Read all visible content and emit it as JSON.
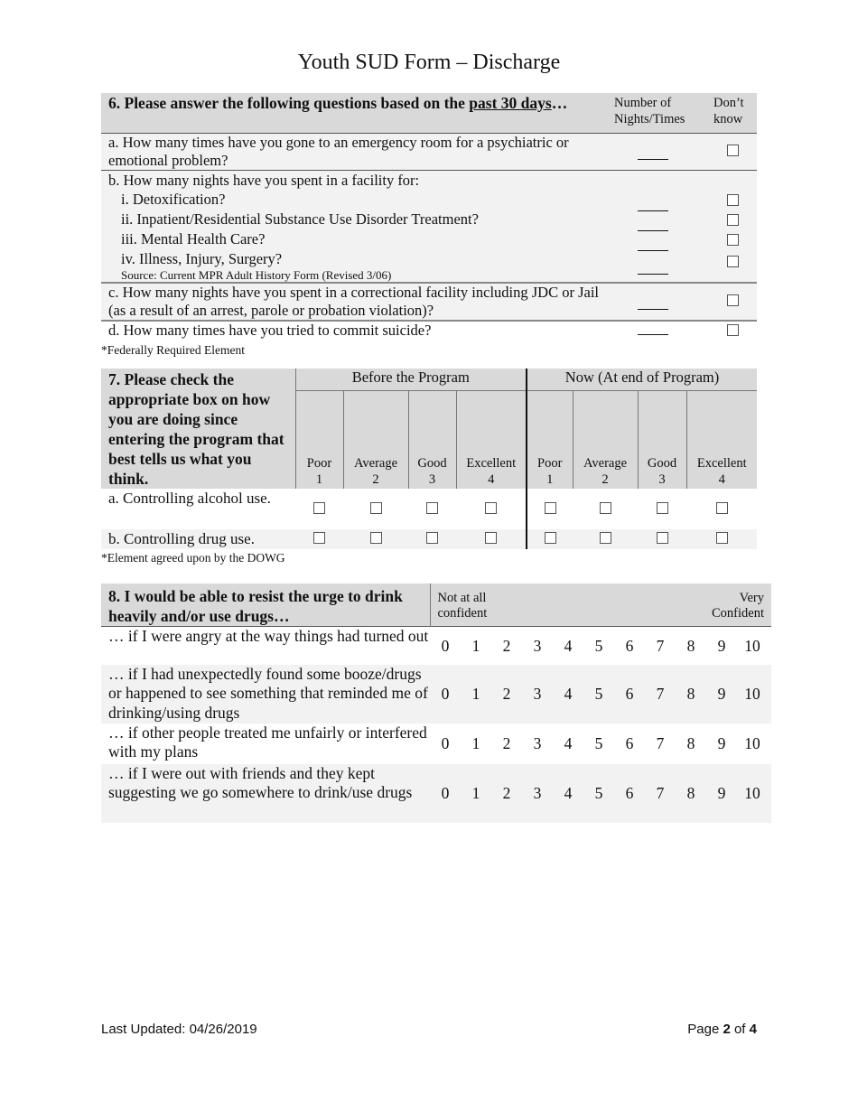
{
  "title": "Youth SUD Form – Discharge",
  "q6": {
    "heading_prefix": "6. Please answer the following questions based on the ",
    "heading_underlined": "past 30 days",
    "heading_suffix": "…",
    "col_number": "Number of Nights/Times",
    "col_dontknow": "Don’t know",
    "a": "a. How many times have you gone to an emergency room for a psychiatric or emotional problem?",
    "b": "b. How many nights have you spent in a facility for:",
    "b_items": [
      "i. Detoxification?",
      "ii. Inpatient/Residential Substance Use Disorder Treatment?",
      "iii. Mental Health Care?",
      "iv. Illness, Injury, Surgery?"
    ],
    "source": "Source: Current MPR Adult History Form (Revised 3/06)",
    "c": "c. How many nights have you spent in a correctional facility including JDC or Jail (as a result of an arrest, parole or probation violation)?",
    "d": "d. How many times have you tried to commit suicide?",
    "footnote": "*Federally Required Element"
  },
  "q7": {
    "heading": "7. Please check the appropriate box on how you are doing since entering the program that best tells us what you think.",
    "group_before": "Before the Program",
    "group_now": "Now (At end of Program)",
    "ratings": [
      {
        "label": "Poor",
        "value": "1"
      },
      {
        "label": "Average",
        "value": "2"
      },
      {
        "label": "Good",
        "value": "3"
      },
      {
        "label": "Excellent",
        "value": "4"
      }
    ],
    "rows": [
      "a. Controlling alcohol use.",
      "b. Controlling drug use."
    ],
    "footnote": "*Element agreed upon by the DOWG"
  },
  "q8": {
    "heading": "8. I would be able to resist the urge to drink heavily and/or use drugs…",
    "scale_low": "Not at all confident",
    "scale_high": "Very Confident",
    "scale": [
      "0",
      "1",
      "2",
      "3",
      "4",
      "5",
      "6",
      "7",
      "8",
      "9",
      "10"
    ],
    "rows": [
      "… if I were angry at the way things had turned out",
      "… if I had unexpectedly found some booze/drugs or happened to see something that reminded me of drinking/using drugs",
      "… if other people treated me unfairly or interfered with my plans",
      "… if I were out with friends and they kept suggesting we go somewhere to drink/use drugs"
    ]
  },
  "footer": {
    "last_updated": "Last Updated: 04/26/2019",
    "page_prefix": "Page ",
    "page_current": "2",
    "page_mid": " of ",
    "page_total": "4"
  }
}
